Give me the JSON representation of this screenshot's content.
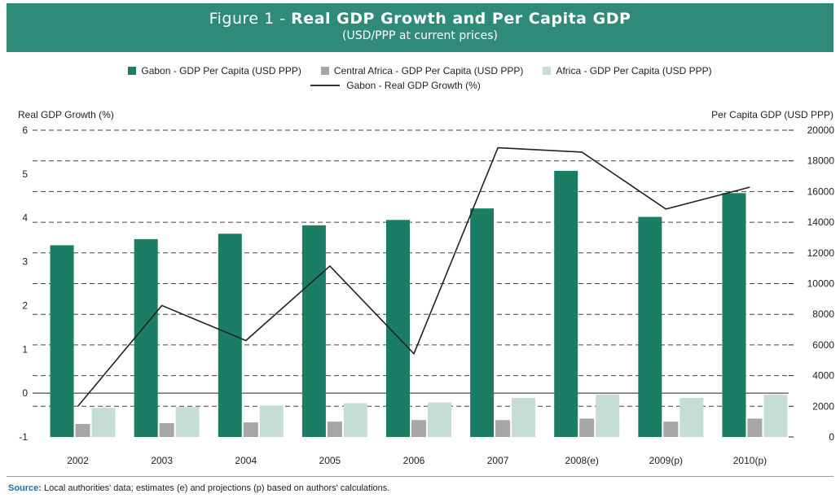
{
  "title": {
    "prefix": "Figure 1 - ",
    "bold": "Real GDP Growth and Per Capita GDP",
    "subtitle": "(USD/PPP at current prices)"
  },
  "legend": {
    "gabon_pc": "Gabon - GDP Per Capita (USD PPP)",
    "ca_pc": "Central Africa - GDP Per Capita (USD PPP)",
    "africa_pc": "Africa - GDP Per Capita (USD PPP)",
    "gabon_growth": "Gabon - Real GDP Growth (%)"
  },
  "source": {
    "label": "Source:",
    "text": "Local authorities' data; estimates (e) and projections (p) based on authors' calculations."
  },
  "colors": {
    "title_bg": "#2f8a77",
    "gabon": "#1b7e64",
    "central_africa": "#a6a6a6",
    "africa": "#c5ddd4",
    "line": "#222222"
  },
  "chart_data": {
    "type": "bar",
    "categories": [
      "2002",
      "2003",
      "2004",
      "2005",
      "2006",
      "2007",
      "2008(e)",
      "2009(p)",
      "2010(p)"
    ],
    "series": [
      {
        "name": "Gabon - GDP Per Capita (USD PPP)",
        "axis": "right",
        "values": [
          12500,
          12900,
          13250,
          13800,
          14150,
          14900,
          17350,
          14350,
          15900
        ]
      },
      {
        "name": "Central Africa - GDP Per Capita (USD PPP)",
        "axis": "right",
        "values": [
          850,
          900,
          950,
          1000,
          1100,
          1100,
          1200,
          1000,
          1200
        ]
      },
      {
        "name": "Africa - GDP Per Capita (USD PPP)",
        "axis": "right",
        "values": [
          1900,
          1950,
          2050,
          2200,
          2250,
          2550,
          2750,
          2550,
          2750
        ]
      },
      {
        "name": "Gabon - Real GDP Growth (%)",
        "axis": "left",
        "type": "line",
        "values": [
          -0.3,
          2.0,
          1.2,
          2.9,
          0.9,
          5.6,
          5.5,
          4.2,
          4.7
        ]
      }
    ],
    "ylabel_left": "Real GDP Growth (%)",
    "ylabel_right": "Per Capita GDP (USD PPP)",
    "ylim_left": [
      -1,
      6
    ],
    "ylim_right": [
      0,
      20000
    ],
    "yticks_left": [
      "6",
      "5",
      "4",
      "3",
      "2",
      "1",
      "0",
      "-1"
    ],
    "yticks_right": [
      "20000",
      "18000",
      "16000",
      "14000",
      "12000",
      "10000",
      "8000",
      "6000",
      "4000",
      "2000",
      "0"
    ],
    "grid": true,
    "legend_position": "top"
  }
}
